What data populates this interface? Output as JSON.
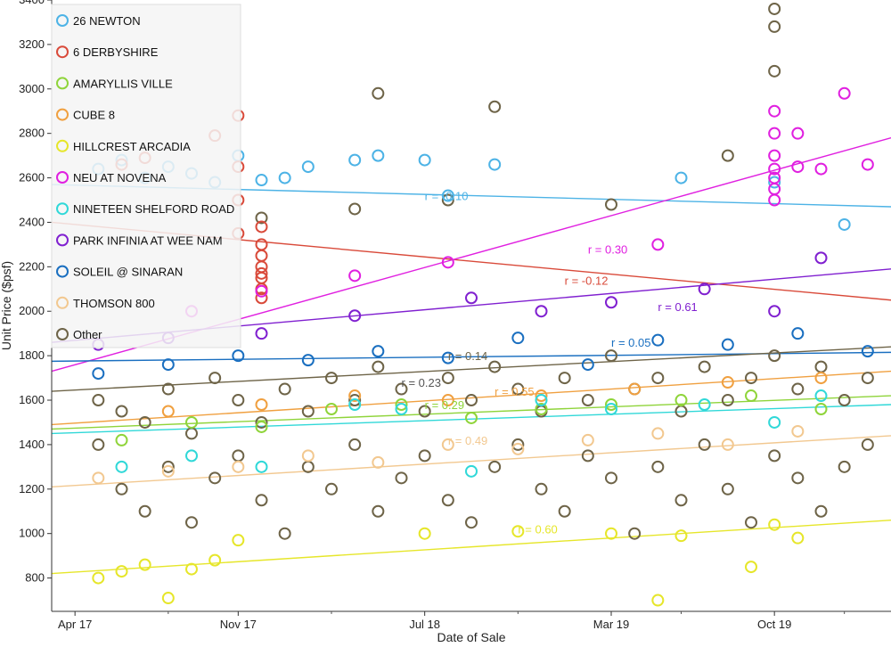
{
  "chart_data": {
    "type": "scatter",
    "xlabel": "Date of Sale",
    "ylabel": "Unit Price ($psf)",
    "xlim": [
      "2017-03",
      "2020-03"
    ],
    "ylim": [
      650,
      3400
    ],
    "x_ticks": [
      {
        "date": "2017-04",
        "label": "Apr 17"
      },
      {
        "date": "2017-11",
        "label": "Nov 17"
      },
      {
        "date": "2018-07",
        "label": "Jul 18"
      },
      {
        "date": "2019-03",
        "label": "Mar 19"
      },
      {
        "date": "2019-10",
        "label": "Oct 19"
      }
    ],
    "minor_x_ticks": [
      "2017-08",
      "2018-03",
      "2018-11",
      "2019-06",
      "2020-01"
    ],
    "y_ticks": [
      800,
      1000,
      1200,
      1400,
      1600,
      1800,
      2000,
      2200,
      2400,
      2600,
      2800,
      3000,
      3200,
      3400
    ],
    "legend_position": "top-left",
    "series": [
      {
        "name": "26 NEWTON",
        "color": "#4db3e6",
        "x": [
          "2017-05",
          "2017-06",
          "2017-07",
          "2017-08",
          "2017-09",
          "2017-10",
          "2017-11",
          "2017-12",
          "2018-01",
          "2018-02",
          "2018-04",
          "2018-05",
          "2018-07",
          "2018-08",
          "2018-10",
          "2019-06",
          "2019-10",
          "2020-01"
        ],
        "y": [
          2640,
          2680,
          2600,
          2650,
          2620,
          2580,
          2700,
          2590,
          2600,
          2650,
          2680,
          2700,
          2680,
          2520,
          2660,
          2600,
          2580,
          2390
        ],
        "trend": [
          2570,
          2470
        ],
        "r_label": "r = -0.10",
        "r_at": [
          "2018-07",
          2500
        ]
      },
      {
        "name": "6 DERBYSHIRE",
        "color": "#d94a3a",
        "x": [
          "2017-06",
          "2017-07",
          "2017-10",
          "2017-11",
          "2017-11",
          "2017-11",
          "2017-12",
          "2017-12",
          "2017-12",
          "2017-12",
          "2017-12",
          "2017-12",
          "2017-11",
          "2017-12",
          "2017-12"
        ],
        "y": [
          2660,
          2690,
          2790,
          2880,
          2650,
          2500,
          2380,
          2300,
          2250,
          2200,
          2170,
          2150,
          2350,
          2100,
          2060
        ],
        "trend": [
          2400,
          2050
        ],
        "r_label": "r = -0.12",
        "r_at": [
          "2019-01",
          2120
        ]
      },
      {
        "name": "AMARYLLIS VILLE",
        "color": "#8fd43a",
        "x": [
          "2017-06",
          "2017-09",
          "2017-12",
          "2018-03",
          "2018-06",
          "2018-09",
          "2018-12",
          "2019-03",
          "2019-06",
          "2019-09",
          "2019-12"
        ],
        "y": [
          1420,
          1500,
          1480,
          1560,
          1580,
          1520,
          1560,
          1580,
          1600,
          1620,
          1560
        ],
        "trend": [
          1470,
          1620
        ],
        "r_label": "r = 0.29",
        "r_at": [
          "2018-07",
          1560
        ]
      },
      {
        "name": "CUBE 8",
        "color": "#f0a040",
        "x": [
          "2017-08",
          "2017-12",
          "2018-04",
          "2018-08",
          "2018-12",
          "2019-04",
          "2019-08",
          "2019-12"
        ],
        "y": [
          1550,
          1580,
          1620,
          1600,
          1620,
          1650,
          1680,
          1700
        ],
        "trend": [
          1490,
          1730
        ],
        "r_label": "r = 0.55",
        "r_at": [
          "2018-10",
          1620
        ]
      },
      {
        "name": "HILLCREST ARCADIA",
        "color": "#e6e62a",
        "x": [
          "2017-05",
          "2017-06",
          "2017-07",
          "2017-08",
          "2017-09",
          "2017-10",
          "2017-11",
          "2018-07",
          "2018-11",
          "2019-03",
          "2019-05",
          "2019-06",
          "2019-09",
          "2019-10",
          "2019-11"
        ],
        "y": [
          800,
          830,
          860,
          710,
          840,
          880,
          970,
          1000,
          1010,
          1000,
          700,
          990,
          850,
          1040,
          980
        ],
        "trend": [
          820,
          1060
        ],
        "r_label": "r = 0.60",
        "r_at": [
          "2018-11",
          1000
        ]
      },
      {
        "name": "NEU AT NOVENA",
        "color": "#e020e0",
        "x": [
          "2017-09",
          "2017-12",
          "2018-04",
          "2018-08",
          "2019-05",
          "2019-10",
          "2019-10",
          "2019-10",
          "2019-10",
          "2019-10",
          "2019-10",
          "2019-10",
          "2019-11",
          "2019-11",
          "2019-12",
          "2020-01",
          "2020-02"
        ],
        "y": [
          2000,
          2090,
          2160,
          2220,
          2300,
          2900,
          2800,
          2700,
          2640,
          2600,
          2550,
          2500,
          2650,
          2800,
          2640,
          2980,
          2660
        ],
        "trend": [
          1730,
          2780
        ],
        "r_label": "r = 0.30",
        "r_at": [
          "2019-02",
          2260
        ]
      },
      {
        "name": "NINETEEN SHELFORD ROAD",
        "color": "#30d8d8",
        "x": [
          "2017-06",
          "2017-09",
          "2017-12",
          "2018-04",
          "2018-06",
          "2018-09",
          "2018-12",
          "2019-03",
          "2019-07",
          "2019-10",
          "2019-12"
        ],
        "y": [
          1300,
          1350,
          1300,
          1580,
          1560,
          1280,
          1600,
          1560,
          1580,
          1500,
          1620
        ],
        "trend": [
          1450,
          1580
        ],
        "r_label": "",
        "r_at": [
          "2018-07",
          1500
        ]
      },
      {
        "name": "PARK INFINIA AT WEE NAM",
        "color": "#8020d0",
        "x": [
          "2017-05",
          "2017-08",
          "2017-12",
          "2018-04",
          "2018-09",
          "2018-12",
          "2019-03",
          "2019-07",
          "2019-10",
          "2019-12"
        ],
        "y": [
          1850,
          1880,
          1900,
          1980,
          2060,
          2000,
          2040,
          2100,
          2000,
          2240
        ],
        "trend": [
          1860,
          2190
        ],
        "r_label": "r = 0.61",
        "r_at": [
          "2019-05",
          2000
        ]
      },
      {
        "name": "SOLEIL @ SINARAN",
        "color": "#1a6fc0",
        "x": [
          "2017-05",
          "2017-08",
          "2017-11",
          "2018-02",
          "2018-05",
          "2018-08",
          "2018-11",
          "2019-02",
          "2019-05",
          "2019-08",
          "2019-11",
          "2020-02"
        ],
        "y": [
          1720,
          1760,
          1800,
          1780,
          1820,
          1790,
          1880,
          1760,
          1870,
          1850,
          1900,
          1820
        ],
        "trend": [
          1775,
          1815
        ],
        "r_label": "r = 0.05",
        "r_at": [
          "2019-03",
          1840
        ]
      },
      {
        "name": "THOMSON 800",
        "color": "#f2c890",
        "x": [
          "2017-05",
          "2017-08",
          "2017-11",
          "2018-02",
          "2018-05",
          "2018-08",
          "2018-11",
          "2019-02",
          "2019-05",
          "2019-08",
          "2019-11"
        ],
        "y": [
          1250,
          1280,
          1300,
          1350,
          1320,
          1400,
          1380,
          1420,
          1450,
          1400,
          1460
        ],
        "trend": [
          1210,
          1440
        ],
        "r_label": "r = 0.49",
        "r_at": [
          "2018-08",
          1400
        ]
      },
      {
        "name": "Other",
        "color": "#6e6448",
        "x": [
          "2017-05",
          "2017-05",
          "2017-06",
          "2017-06",
          "2017-07",
          "2017-07",
          "2017-08",
          "2017-08",
          "2017-09",
          "2017-09",
          "2017-10",
          "2017-10",
          "2017-11",
          "2017-11",
          "2017-12",
          "2017-12",
          "2018-01",
          "2018-01",
          "2018-02",
          "2018-02",
          "2018-03",
          "2018-03",
          "2018-04",
          "2018-04",
          "2018-05",
          "2018-05",
          "2018-06",
          "2018-06",
          "2018-07",
          "2018-07",
          "2018-08",
          "2018-08",
          "2018-09",
          "2018-09",
          "2018-10",
          "2018-10",
          "2018-11",
          "2018-11",
          "2018-12",
          "2018-12",
          "2019-01",
          "2019-01",
          "2019-02",
          "2019-02",
          "2019-03",
          "2019-03",
          "2019-04",
          "2019-04",
          "2019-05",
          "2019-05",
          "2019-06",
          "2019-06",
          "2019-07",
          "2019-07",
          "2019-08",
          "2019-08",
          "2019-09",
          "2019-09",
          "2019-10",
          "2019-10",
          "2019-11",
          "2019-11",
          "2019-12",
          "2019-12",
          "2020-01",
          "2020-01",
          "2020-02",
          "2020-02",
          "2019-10",
          "2019-10",
          "2019-10",
          "2018-05",
          "2018-10",
          "2019-08",
          "2018-04",
          "2017-12",
          "2019-03",
          "2018-08"
        ],
        "y": [
          1600,
          1400,
          1550,
          1200,
          1500,
          1100,
          1650,
          1300,
          1450,
          1050,
          1700,
          1250,
          1600,
          1350,
          1500,
          1150,
          1650,
          1000,
          1550,
          1300,
          1700,
          1200,
          1600,
          1400,
          1750,
          1100,
          1650,
          1250,
          1550,
          1350,
          1700,
          1150,
          1600,
          1050,
          1750,
          1300,
          1650,
          1400,
          1550,
          1200,
          1700,
          1100,
          1600,
          1350,
          1800,
          1250,
          1650,
          1000,
          1700,
          1300,
          1550,
          1150,
          1750,
          1400,
          1600,
          1200,
          1700,
          1050,
          1800,
          1350,
          1650,
          1250,
          1750,
          1100,
          1600,
          1300,
          1700,
          1400,
          3360,
          3280,
          3080,
          2980,
          2920,
          2700,
          2460,
          2420,
          2480,
          2500
        ],
        "trend": [
          1640,
          1840
        ],
        "r_label": "r = 0.14",
        "r_at": [
          "2018-08",
          1780
        ]
      }
    ],
    "extra_r_labels": [
      {
        "label": "r = 0.23",
        "color": "#555555",
        "at": [
          "2018-06",
          1660
        ]
      }
    ]
  }
}
